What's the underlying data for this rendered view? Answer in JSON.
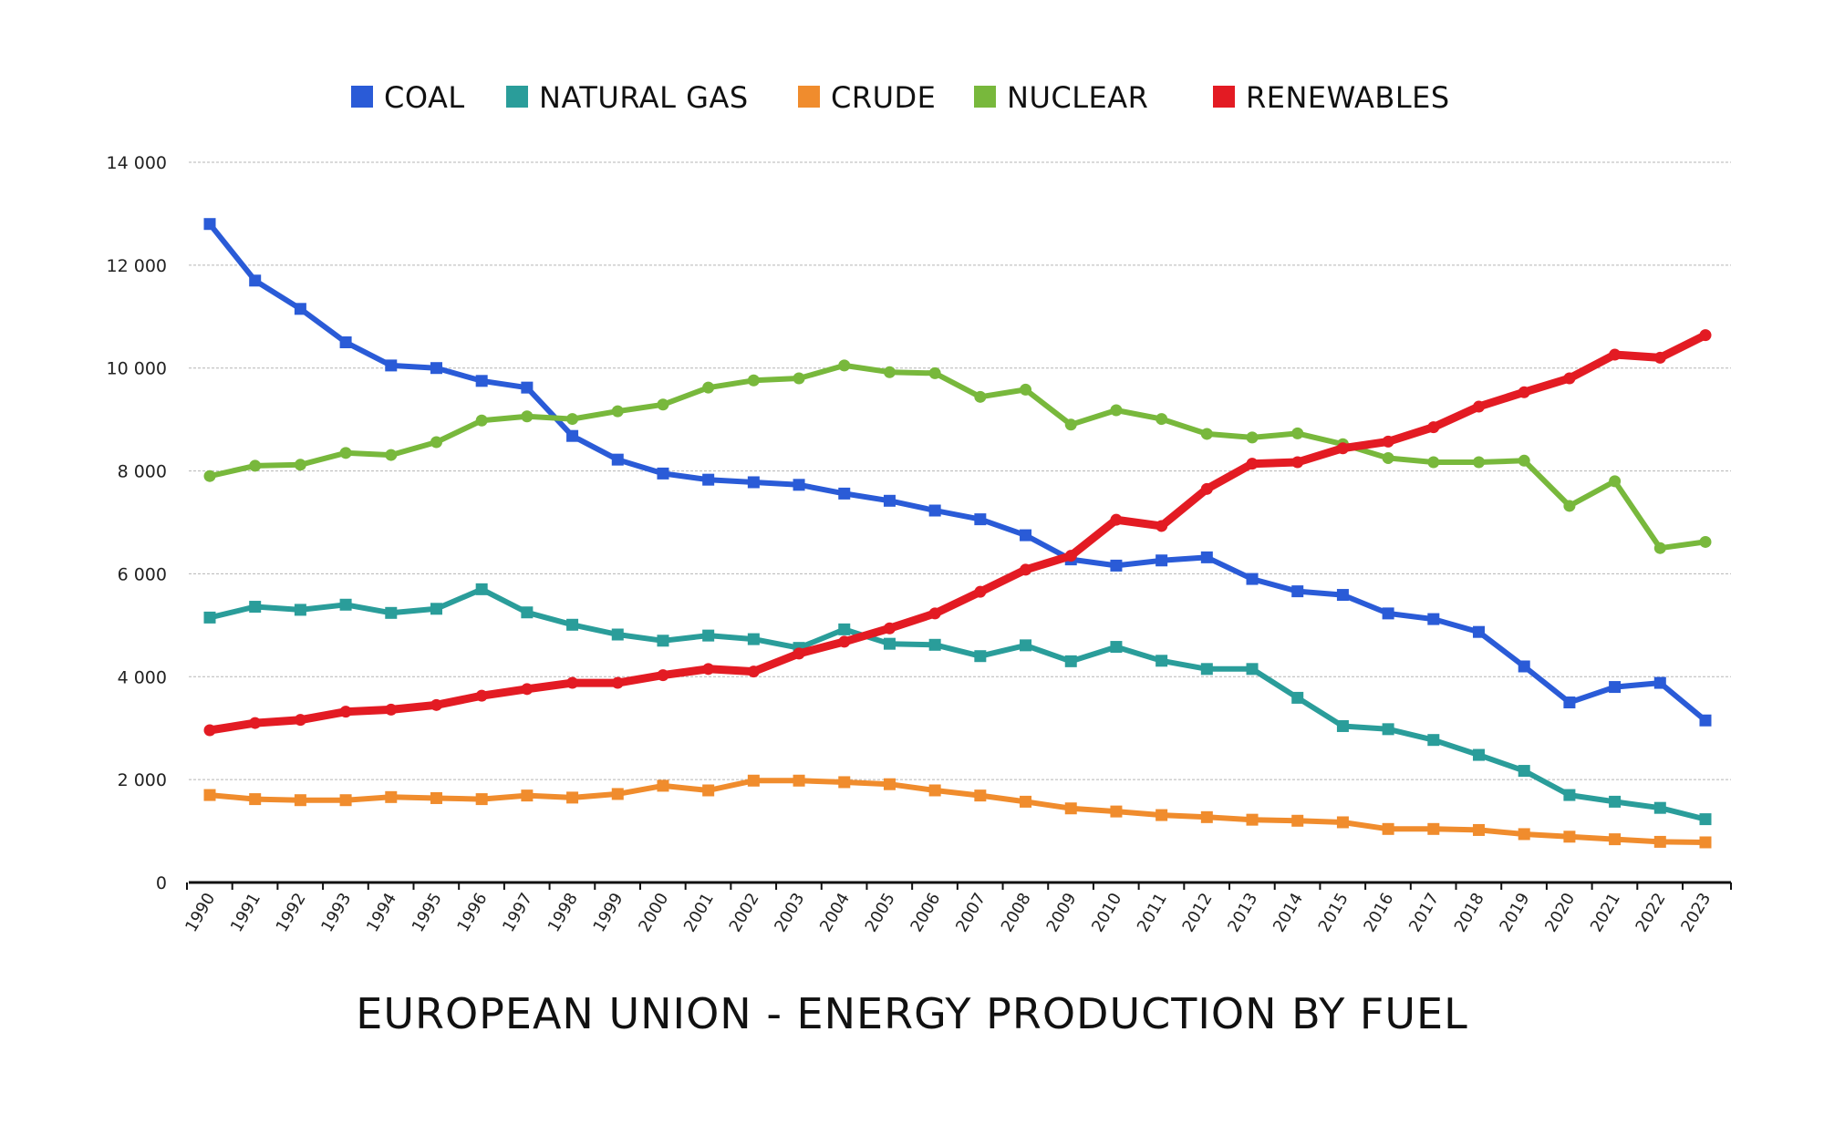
{
  "chart_data": {
    "type": "line",
    "title": "EUROPEAN UNION - ENERGY PRODUCTION BY FUEL",
    "xlabel": "",
    "ylabel": "",
    "ylim": [
      0,
      14000
    ],
    "y_ticks": [
      0,
      2000,
      4000,
      6000,
      8000,
      10000,
      12000,
      14000
    ],
    "y_tick_labels": [
      "0",
      "2 000",
      "4 000",
      "6 000",
      "8 000",
      "10 000",
      "12 000",
      "14 000"
    ],
    "grid": true,
    "legend_position": "top",
    "x": [
      "1990",
      "1991",
      "1992",
      "1993",
      "1994",
      "1995",
      "1996",
      "1997",
      "1998",
      "1999",
      "2000",
      "2001",
      "2002",
      "2003",
      "2004",
      "2005",
      "2006",
      "2007",
      "2008",
      "2009",
      "2010",
      "2011",
      "2012",
      "2013",
      "2014",
      "2015",
      "2016",
      "2017",
      "2018",
      "2019",
      "2020",
      "2021",
      "2022",
      "2023"
    ],
    "series": [
      {
        "name": "COAL",
        "color": "#2a5bd7",
        "marker": "square",
        "values": [
          12800,
          11700,
          11150,
          10500,
          10050,
          10000,
          9750,
          9620,
          8680,
          8220,
          7950,
          7830,
          7780,
          7730,
          7560,
          7420,
          7230,
          7060,
          6750,
          6280,
          6160,
          6260,
          6320,
          5900,
          5660,
          5590,
          5230,
          5120,
          4870,
          4200,
          3500,
          3800,
          3880,
          3150
        ]
      },
      {
        "name": "NATURAL GAS",
        "color": "#2a9d9a",
        "marker": "square",
        "values": [
          5150,
          5360,
          5300,
          5400,
          5240,
          5320,
          5700,
          5250,
          5010,
          4820,
          4700,
          4800,
          4730,
          4560,
          4920,
          4640,
          4620,
          4400,
          4610,
          4300,
          4580,
          4310,
          4150,
          4150,
          3590,
          3040,
          2980,
          2770,
          2480,
          2170,
          1700,
          1570,
          1450,
          1230
        ]
      },
      {
        "name": "CRUDE",
        "color": "#f08c2d",
        "marker": "square",
        "values": [
          1700,
          1620,
          1600,
          1600,
          1660,
          1640,
          1620,
          1690,
          1650,
          1720,
          1880,
          1790,
          1980,
          1980,
          1950,
          1910,
          1790,
          1690,
          1570,
          1440,
          1380,
          1310,
          1270,
          1220,
          1200,
          1170,
          1040,
          1040,
          1020,
          940,
          890,
          840,
          790,
          780
        ]
      },
      {
        "name": "NUCLEAR",
        "color": "#78b83c",
        "marker": "circle",
        "values": [
          7900,
          8100,
          8120,
          8350,
          8310,
          8560,
          8980,
          9060,
          9010,
          9160,
          9290,
          9620,
          9760,
          9800,
          10050,
          9920,
          9900,
          9440,
          9580,
          8900,
          9180,
          9010,
          8720,
          8650,
          8730,
          8520,
          8250,
          8170,
          8170,
          8200,
          7320,
          7800,
          6500,
          6620
        ]
      },
      {
        "name": "RENEWABLES",
        "color": "#e31b23",
        "marker": "circle",
        "values": [
          2960,
          3100,
          3160,
          3320,
          3360,
          3450,
          3630,
          3760,
          3880,
          3880,
          4030,
          4150,
          4100,
          4450,
          4680,
          4940,
          5230,
          5650,
          6080,
          6350,
          7050,
          6930,
          7650,
          8140,
          8170,
          8440,
          8570,
          8850,
          9250,
          9530,
          9800,
          10260,
          10200,
          10640
        ]
      }
    ]
  }
}
